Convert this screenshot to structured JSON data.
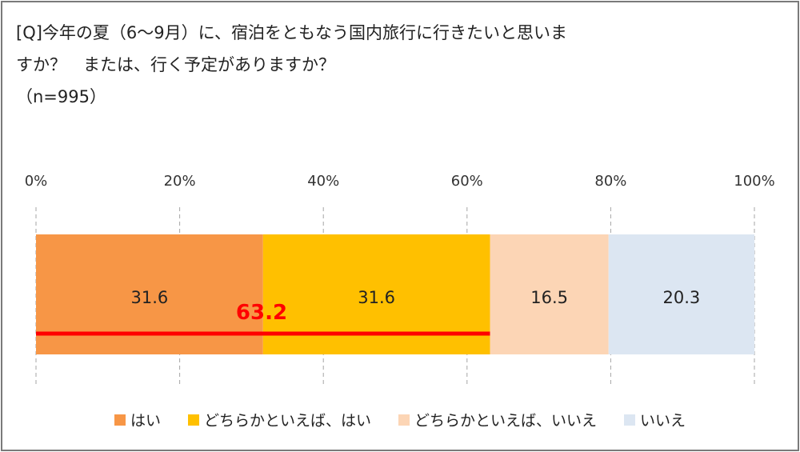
{
  "question": {
    "lines": [
      "[Q]今年の夏（6～9月）に、宿泊をともなう国内旅行に行きたいと思いま",
      "すか？　または、行く予定がありますか？",
      "（n=995）"
    ]
  },
  "chart_data": {
    "type": "bar",
    "orientation": "horizontal-stacked-100",
    "title": "[Q]今年の夏（6～9月）に、宿泊をともなう国内旅行に行きたいと思いますか？　または、行く予定がありますか？（n=995）",
    "x_ticks": [
      "0%",
      "20%",
      "40%",
      "60%",
      "80%",
      "100%"
    ],
    "xlim": [
      0,
      100
    ],
    "grid": true,
    "legend_position": "bottom",
    "series": [
      {
        "name": "はい",
        "values": [
          31.6
        ],
        "label": "31.6",
        "color": "#f79646"
      },
      {
        "name": "どちらかといえば、はい",
        "values": [
          31.6
        ],
        "label": "31.6",
        "color": "#ffc000"
      },
      {
        "name": "どちらかといえば、いいえ",
        "values": [
          16.5
        ],
        "label": "16.5",
        "color": "#fcd5b5"
      },
      {
        "name": "いいえ",
        "values": [
          20.3
        ],
        "label": "20.3",
        "color": "#dce6f2"
      }
    ],
    "annotation": {
      "text": "63.2",
      "from": 0,
      "to": 63.2,
      "color": "#ff0000"
    }
  }
}
